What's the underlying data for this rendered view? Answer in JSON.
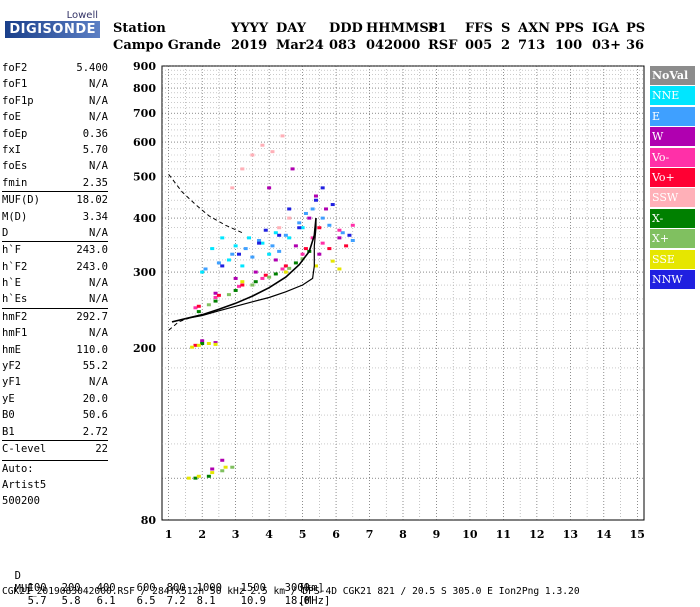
{
  "logo": {
    "line1": "Lowell",
    "line2": "DIGISONDE"
  },
  "header": {
    "labels": [
      "Station",
      "YYYY",
      "DAY",
      "DDD",
      "HHMMSS",
      "P1",
      "FFS",
      "S",
      "AXN",
      "PPS",
      "IGA",
      "PS"
    ],
    "values": [
      "Campo Grande",
      "2019",
      "Mar24",
      "083",
      "042000",
      "RSF",
      "005",
      "2",
      "713",
      "100",
      "03+",
      "36"
    ]
  },
  "params": [
    {
      "name": "foF2",
      "value": "5.400"
    },
    {
      "name": "foF1",
      "value": "N/A"
    },
    {
      "name": "foF1p",
      "value": "N/A"
    },
    {
      "name": "foE",
      "value": "N/A"
    },
    {
      "name": "foEp",
      "value": "0.36"
    },
    {
      "name": "fxI",
      "value": "5.70"
    },
    {
      "name": "foEs",
      "value": "N/A"
    },
    {
      "name": "fmin",
      "value": "2.35"
    },
    {
      "name": "MUF(D)",
      "value": "18.02",
      "sep": true
    },
    {
      "name": "M(D)",
      "value": "3.34"
    },
    {
      "name": "D",
      "value": "N/A"
    },
    {
      "name": "h`F",
      "value": "243.0",
      "sep": true
    },
    {
      "name": "h`F2",
      "value": "243.0"
    },
    {
      "name": "h`E",
      "value": "N/A"
    },
    {
      "name": "h`Es",
      "value": "N/A"
    },
    {
      "name": "hmF2",
      "value": "292.7",
      "sep": true
    },
    {
      "name": "hmF1",
      "value": "N/A"
    },
    {
      "name": "hmE",
      "value": "110.0"
    },
    {
      "name": "yF2",
      "value": "55.2"
    },
    {
      "name": "yF1",
      "value": "N/A"
    },
    {
      "name": "yE",
      "value": "20.0"
    },
    {
      "name": "B0",
      "value": "50.6"
    },
    {
      "name": "B1",
      "value": "2.72"
    },
    {
      "name": "C-level",
      "value": "22",
      "sep": true
    }
  ],
  "autoscaling": {
    "line1": "Auto:",
    "line2": "Artist5",
    "line3": "500200"
  },
  "legend": [
    {
      "label": "NoVal",
      "color": "#8c8c8c"
    },
    {
      "label": "NNE",
      "color": "#00e6ff"
    },
    {
      "label": "E",
      "color": "#3fa0ff"
    },
    {
      "label": "W",
      "color": "#b000b0"
    },
    {
      "label": "Vo-",
      "color": "#ff30a8"
    },
    {
      "label": "Vo+",
      "color": "#ff0033"
    },
    {
      "label": "SSW",
      "color": "#ffb0b8"
    },
    {
      "label": "X-",
      "color": "#008000"
    },
    {
      "label": "X+",
      "color": "#80c060"
    },
    {
      "label": "SSE",
      "color": "#e6e600"
    },
    {
      "label": "NNW",
      "color": "#2020e0"
    }
  ],
  "muf_table": {
    "d_label": "D",
    "d_values": [
      "100",
      "200",
      "400",
      "600",
      "800",
      "1000",
      "1500",
      "3000",
      "[km]"
    ],
    "muf_label": "MUF",
    "muf_values": [
      "5.7",
      "5.8",
      "6.1",
      "6.5",
      "7.2",
      "8.1",
      "10.9",
      "18.0",
      "[MHz]"
    ]
  },
  "footer": "CGK21_2019083042000.RSF / 284fx512h 50 kHz 2.5 km / DPS-4D CGK21 821 / 20.5 S 305.0 E Ion2Png 1.3.20",
  "chart_data": {
    "type": "scatter",
    "x_ticks": [
      1,
      2,
      3,
      4,
      5,
      6,
      7,
      8,
      9,
      10,
      11,
      12,
      13,
      14,
      15
    ],
    "y_ticks": [
      80,
      200,
      300,
      400,
      500,
      600,
      700,
      800,
      900
    ],
    "xlim": [
      0.8,
      15.2
    ],
    "ylim": [
      80,
      900
    ],
    "y_scale": "log",
    "grid": true,
    "series": [
      {
        "name": "NNE",
        "points": [
          [
            2.0,
            300
          ],
          [
            2.3,
            340
          ],
          [
            2.6,
            360
          ],
          [
            3.0,
            345
          ],
          [
            3.4,
            360
          ],
          [
            3.8,
            350
          ],
          [
            4.2,
            370
          ],
          [
            4.6,
            360
          ],
          [
            5.0,
            380
          ],
          [
            3.2,
            310
          ],
          [
            2.8,
            320
          ],
          [
            4.0,
            330
          ]
        ]
      },
      {
        "name": "E",
        "points": [
          [
            2.1,
            305
          ],
          [
            2.5,
            315
          ],
          [
            2.9,
            330
          ],
          [
            3.3,
            340
          ],
          [
            3.7,
            355
          ],
          [
            4.1,
            345
          ],
          [
            4.5,
            365
          ],
          [
            4.9,
            390
          ],
          [
            5.3,
            420
          ],
          [
            5.6,
            400
          ],
          [
            6.2,
            370
          ],
          [
            6.5,
            355
          ],
          [
            3.5,
            325
          ],
          [
            4.3,
            335
          ],
          [
            5.1,
            410
          ],
          [
            5.8,
            385
          ]
        ]
      },
      {
        "name": "W",
        "points": [
          [
            2.4,
            268
          ],
          [
            3.0,
            290
          ],
          [
            3.6,
            300
          ],
          [
            4.2,
            320
          ],
          [
            4.8,
            345
          ],
          [
            5.2,
            400
          ],
          [
            5.4,
            450
          ],
          [
            5.7,
            420
          ],
          [
            6.1,
            360
          ],
          [
            5.5,
            330
          ],
          [
            2.0,
            208
          ],
          [
            2.4,
            206
          ],
          [
            2.3,
            105
          ],
          [
            2.6,
            110
          ],
          [
            4.0,
            470
          ],
          [
            4.7,
            520
          ]
        ]
      },
      {
        "name": "Vo-",
        "points": [
          [
            1.8,
            248
          ],
          [
            2.4,
            262
          ],
          [
            3.1,
            278
          ],
          [
            3.8,
            290
          ],
          [
            4.4,
            305
          ],
          [
            5.0,
            330
          ],
          [
            5.3,
            360
          ],
          [
            5.6,
            350
          ],
          [
            6.1,
            375
          ],
          [
            6.5,
            385
          ]
        ]
      },
      {
        "name": "Vo+",
        "points": [
          [
            1.9,
            250
          ],
          [
            2.5,
            265
          ],
          [
            3.2,
            280
          ],
          [
            3.9,
            295
          ],
          [
            4.5,
            310
          ],
          [
            5.1,
            340
          ],
          [
            5.5,
            380
          ],
          [
            5.8,
            340
          ],
          [
            6.3,
            345
          ],
          [
            1.8,
            203
          ]
        ]
      },
      {
        "name": "SSW",
        "points": [
          [
            3.5,
            560
          ],
          [
            3.8,
            590
          ],
          [
            4.1,
            570
          ],
          [
            4.4,
            620
          ],
          [
            3.2,
            520
          ],
          [
            2.9,
            470
          ],
          [
            4.3,
            380
          ],
          [
            4.6,
            400
          ]
        ]
      },
      {
        "name": "X-",
        "points": [
          [
            1.9,
            243
          ],
          [
            2.4,
            257
          ],
          [
            3.0,
            272
          ],
          [
            3.6,
            285
          ],
          [
            4.2,
            297
          ],
          [
            4.8,
            315
          ],
          [
            5.2,
            335
          ],
          [
            2.0,
            205
          ],
          [
            1.8,
            100
          ],
          [
            2.2,
            101
          ]
        ]
      },
      {
        "name": "X+",
        "points": [
          [
            2.2,
            252
          ],
          [
            2.8,
            266
          ],
          [
            3.5,
            280
          ],
          [
            4.0,
            292
          ],
          [
            4.6,
            306
          ],
          [
            5.0,
            322
          ],
          [
            2.6,
            104
          ],
          [
            2.9,
            106
          ]
        ]
      },
      {
        "name": "SSE",
        "points": [
          [
            1.7,
            201
          ],
          [
            1.9,
            203
          ],
          [
            2.2,
            205
          ],
          [
            2.4,
            204
          ],
          [
            1.6,
            100
          ],
          [
            1.9,
            101
          ],
          [
            2.3,
            103
          ],
          [
            2.7,
            106
          ],
          [
            5.4,
            310
          ],
          [
            5.9,
            318
          ],
          [
            6.1,
            305
          ],
          [
            3.2,
            285
          ],
          [
            4.5,
            300
          ]
        ]
      },
      {
        "name": "NNW",
        "points": [
          [
            2.6,
            310
          ],
          [
            3.1,
            330
          ],
          [
            3.7,
            350
          ],
          [
            4.3,
            365
          ],
          [
            4.9,
            380
          ],
          [
            5.4,
            440
          ],
          [
            5.6,
            470
          ],
          [
            5.9,
            430
          ],
          [
            6.4,
            365
          ],
          [
            3.9,
            375
          ],
          [
            4.6,
            420
          ]
        ]
      }
    ],
    "profile_solid": [
      [
        1.1,
        230
      ],
      [
        1.5,
        234
      ],
      [
        2.0,
        238
      ],
      [
        2.5,
        244
      ],
      [
        3.0,
        250
      ],
      [
        3.5,
        256
      ],
      [
        4.0,
        262
      ],
      [
        4.5,
        270
      ],
      [
        5.0,
        280
      ],
      [
        5.3,
        290
      ],
      [
        5.35,
        310
      ],
      [
        5.35,
        345
      ],
      [
        5.4,
        380
      ],
      [
        5.4,
        400
      ]
    ],
    "trace_fit": [
      [
        1.1,
        230
      ],
      [
        1.5,
        234
      ],
      [
        2.0,
        239
      ],
      [
        2.5,
        246
      ],
      [
        3.0,
        254
      ],
      [
        3.5,
        264
      ],
      [
        4.0,
        276
      ],
      [
        4.5,
        292
      ],
      [
        4.9,
        312
      ],
      [
        5.2,
        335
      ],
      [
        5.35,
        365
      ],
      [
        5.4,
        400
      ]
    ],
    "extrapolation_dashed": [
      [
        1.0,
        220
      ],
      [
        1.3,
        230
      ],
      [
        1.7,
        236
      ],
      [
        2.2,
        241
      ]
    ],
    "topside_dashed": [
      [
        1.0,
        505
      ],
      [
        1.4,
        460
      ],
      [
        1.8,
        430
      ],
      [
        2.2,
        405
      ],
      [
        2.7,
        385
      ],
      [
        3.2,
        370
      ]
    ]
  }
}
